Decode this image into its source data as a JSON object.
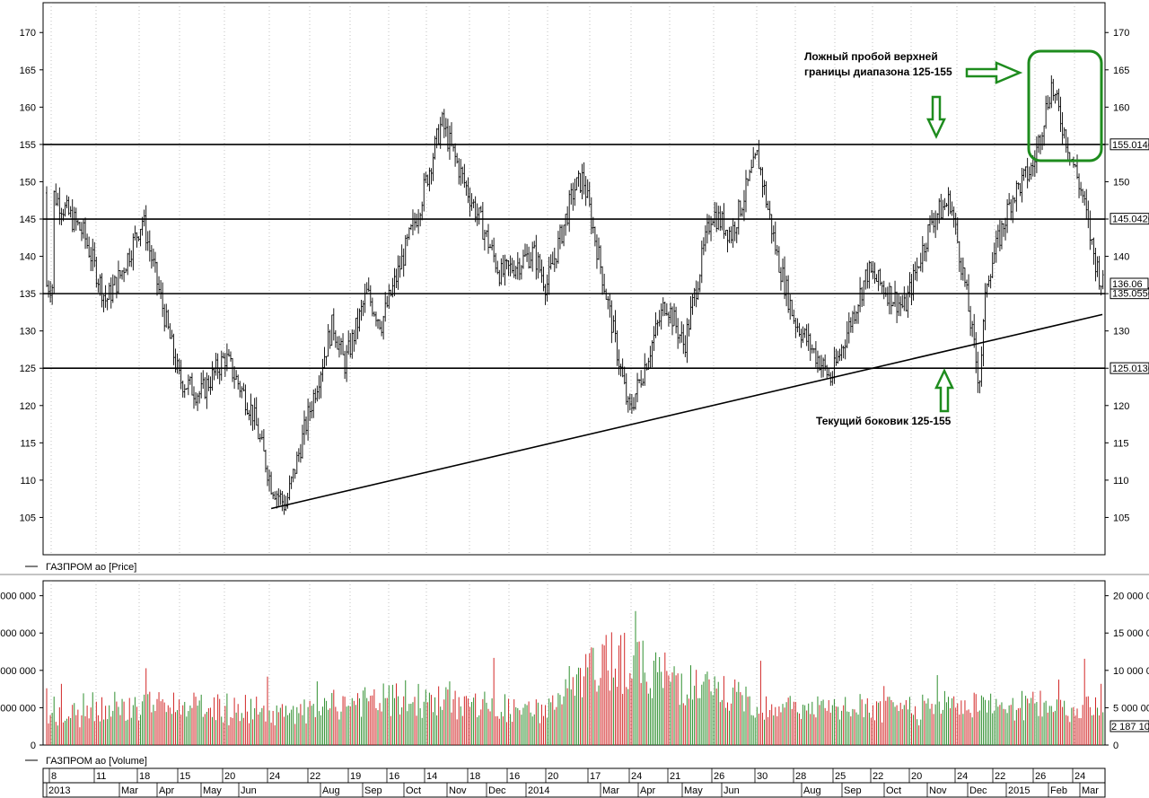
{
  "colors": {
    "up": "#2f8f2f",
    "down": "#d22727",
    "price": "#000000",
    "annotation": "#1e8c1e",
    "grid": "#9a9a9a"
  },
  "price_panel": {
    "legend": "ГАЗПРОМ ао [Price]",
    "ylim": [
      100,
      174
    ],
    "ticks": [
      "105",
      "110",
      "115",
      "120",
      "125",
      "130",
      "135",
      "140",
      "145",
      "150",
      "155",
      "160",
      "165",
      "170"
    ],
    "level_labels": [
      "155.0140",
      "145.0420",
      "135.0550",
      "125.0130"
    ],
    "last_label": "136.06"
  },
  "volume_panel": {
    "legend": "ГАЗПРОМ ао [Volume]",
    "ylim": [
      0,
      22000000
    ],
    "ticks_right": [
      "0",
      "5 000 000",
      "10 000 000",
      "15 000 000",
      "20 000 000"
    ],
    "ticks_left": [
      "0",
      "000 000",
      "000 000",
      "000 000",
      "000 000"
    ],
    "last_label": "2 187 10"
  },
  "time_axis": {
    "days": [
      "8",
      "11",
      "18",
      "15",
      "20",
      "24",
      "22",
      "19",
      "16",
      "14",
      "18",
      "16",
      "20",
      "17",
      "24",
      "21",
      "26",
      "30",
      "28",
      "25",
      "22",
      "20",
      "24",
      "22",
      "26",
      "24"
    ],
    "months": [
      "2013",
      "Mar",
      "Apr",
      "May",
      "Jun",
      "Aug",
      "Sep",
      "Oct",
      "Nov",
      "Dec",
      "2014",
      "Mar",
      "Apr",
      "May",
      "Jun",
      "Aug",
      "Sep",
      "Oct",
      "Nov",
      "Dec",
      "2015",
      "Feb",
      "Mar"
    ]
  },
  "annotations": {
    "false_breakout_line1": "Ложный пробой верхней",
    "false_breakout_line2": "границы диапазона 125-155",
    "range": "Текущий боковик 125-155"
  },
  "chart_data": {
    "type": "line",
    "title": "",
    "series": [
      {
        "name": "ГАЗПРОМ ао [Price]",
        "x": [
          "2013-01-08",
          "2013-02-01",
          "2013-02-18",
          "2013-03-01",
          "2013-03-18",
          "2013-04-05",
          "2013-04-15",
          "2013-05-01",
          "2013-05-20",
          "2013-06-10",
          "2013-06-24",
          "2013-07-05",
          "2013-07-22",
          "2013-08-10",
          "2013-08-19",
          "2013-09-05",
          "2013-09-16",
          "2013-10-14",
          "2013-11-01",
          "2013-11-18",
          "2013-12-01",
          "2013-12-16",
          "2014-01-10",
          "2014-01-20",
          "2014-02-10",
          "2014-02-17",
          "2014-03-03",
          "2014-03-24",
          "2014-04-21",
          "2014-05-05",
          "2014-05-26",
          "2014-06-10",
          "2014-06-30",
          "2014-07-15",
          "2014-07-28",
          "2014-08-25",
          "2014-09-22",
          "2014-10-20",
          "2014-11-10",
          "2014-11-24",
          "2014-12-05",
          "2014-12-16",
          "2014-12-22",
          "2015-01-10",
          "2015-01-26",
          "2015-02-09",
          "2015-02-24",
          "2015-03-05",
          "2015-03-13",
          "2015-03-20"
        ],
        "values": [
          148.5,
          143.0,
          134.0,
          137.5,
          145.0,
          131.0,
          123.5,
          121.5,
          126.5,
          119.0,
          109.5,
          106.5,
          118.5,
          131.0,
          125.5,
          135.0,
          131.0,
          146.0,
          158.0,
          150.0,
          144.5,
          137.5,
          140.5,
          136.0,
          149.0,
          150.5,
          138.0,
          119.0,
          134.0,
          128.0,
          146.0,
          143.0,
          153.5,
          140.0,
          131.5,
          123.5,
          138.0,
          133.0,
          145.0,
          147.5,
          136.5,
          123.0,
          137.0,
          148.0,
          152.0,
          163.0,
          153.5,
          148.0,
          140.5,
          136.1
        ]
      },
      {
        "name": "ГАЗПРОМ ао [Volume]",
        "x": [
          "2013-01",
          "2013-03",
          "2013-05",
          "2013-07",
          "2013-09",
          "2013-11",
          "2014-01",
          "2014-03",
          "2014-05",
          "2014-07",
          "2014-09",
          "2014-11",
          "2015-01",
          "2015-03"
        ],
        "values": [
          3000000,
          4500000,
          4000000,
          3200000,
          5200000,
          4800000,
          3300000,
          11000000,
          6500000,
          4200000,
          3800000,
          4000000,
          4500000,
          4200000
        ]
      }
    ],
    "levels": [
      125,
      135,
      145,
      155
    ],
    "trendline": {
      "from": [
        "2013-06-24",
        106.2
      ],
      "to": [
        "2015-03-20",
        132.2
      ]
    },
    "ylim": [
      100,
      174
    ],
    "grid": true,
    "legend": "bottom-left"
  }
}
